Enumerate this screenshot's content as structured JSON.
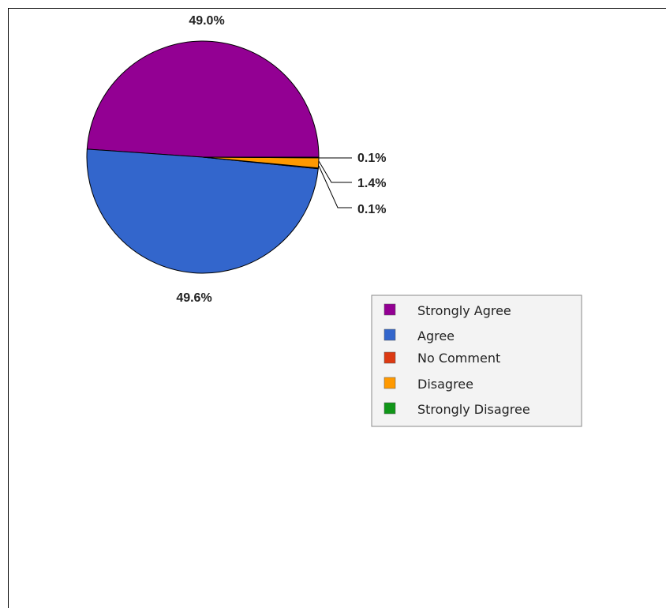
{
  "chart_data": {
    "type": "pie",
    "categories": [
      "Strongly Agree",
      "Agree",
      "No Comment",
      "Disagree",
      "Strongly Disagree"
    ],
    "values": [
      49.0,
      49.6,
      0.1,
      1.4,
      0.1
    ],
    "labels": [
      "49.0%",
      "49.6%",
      "0.1%",
      "1.4%",
      "0.1%"
    ],
    "colors": [
      "#930093",
      "#3366cc",
      "#dc3912",
      "#ff9900",
      "#109618"
    ],
    "legend_position": "right"
  }
}
